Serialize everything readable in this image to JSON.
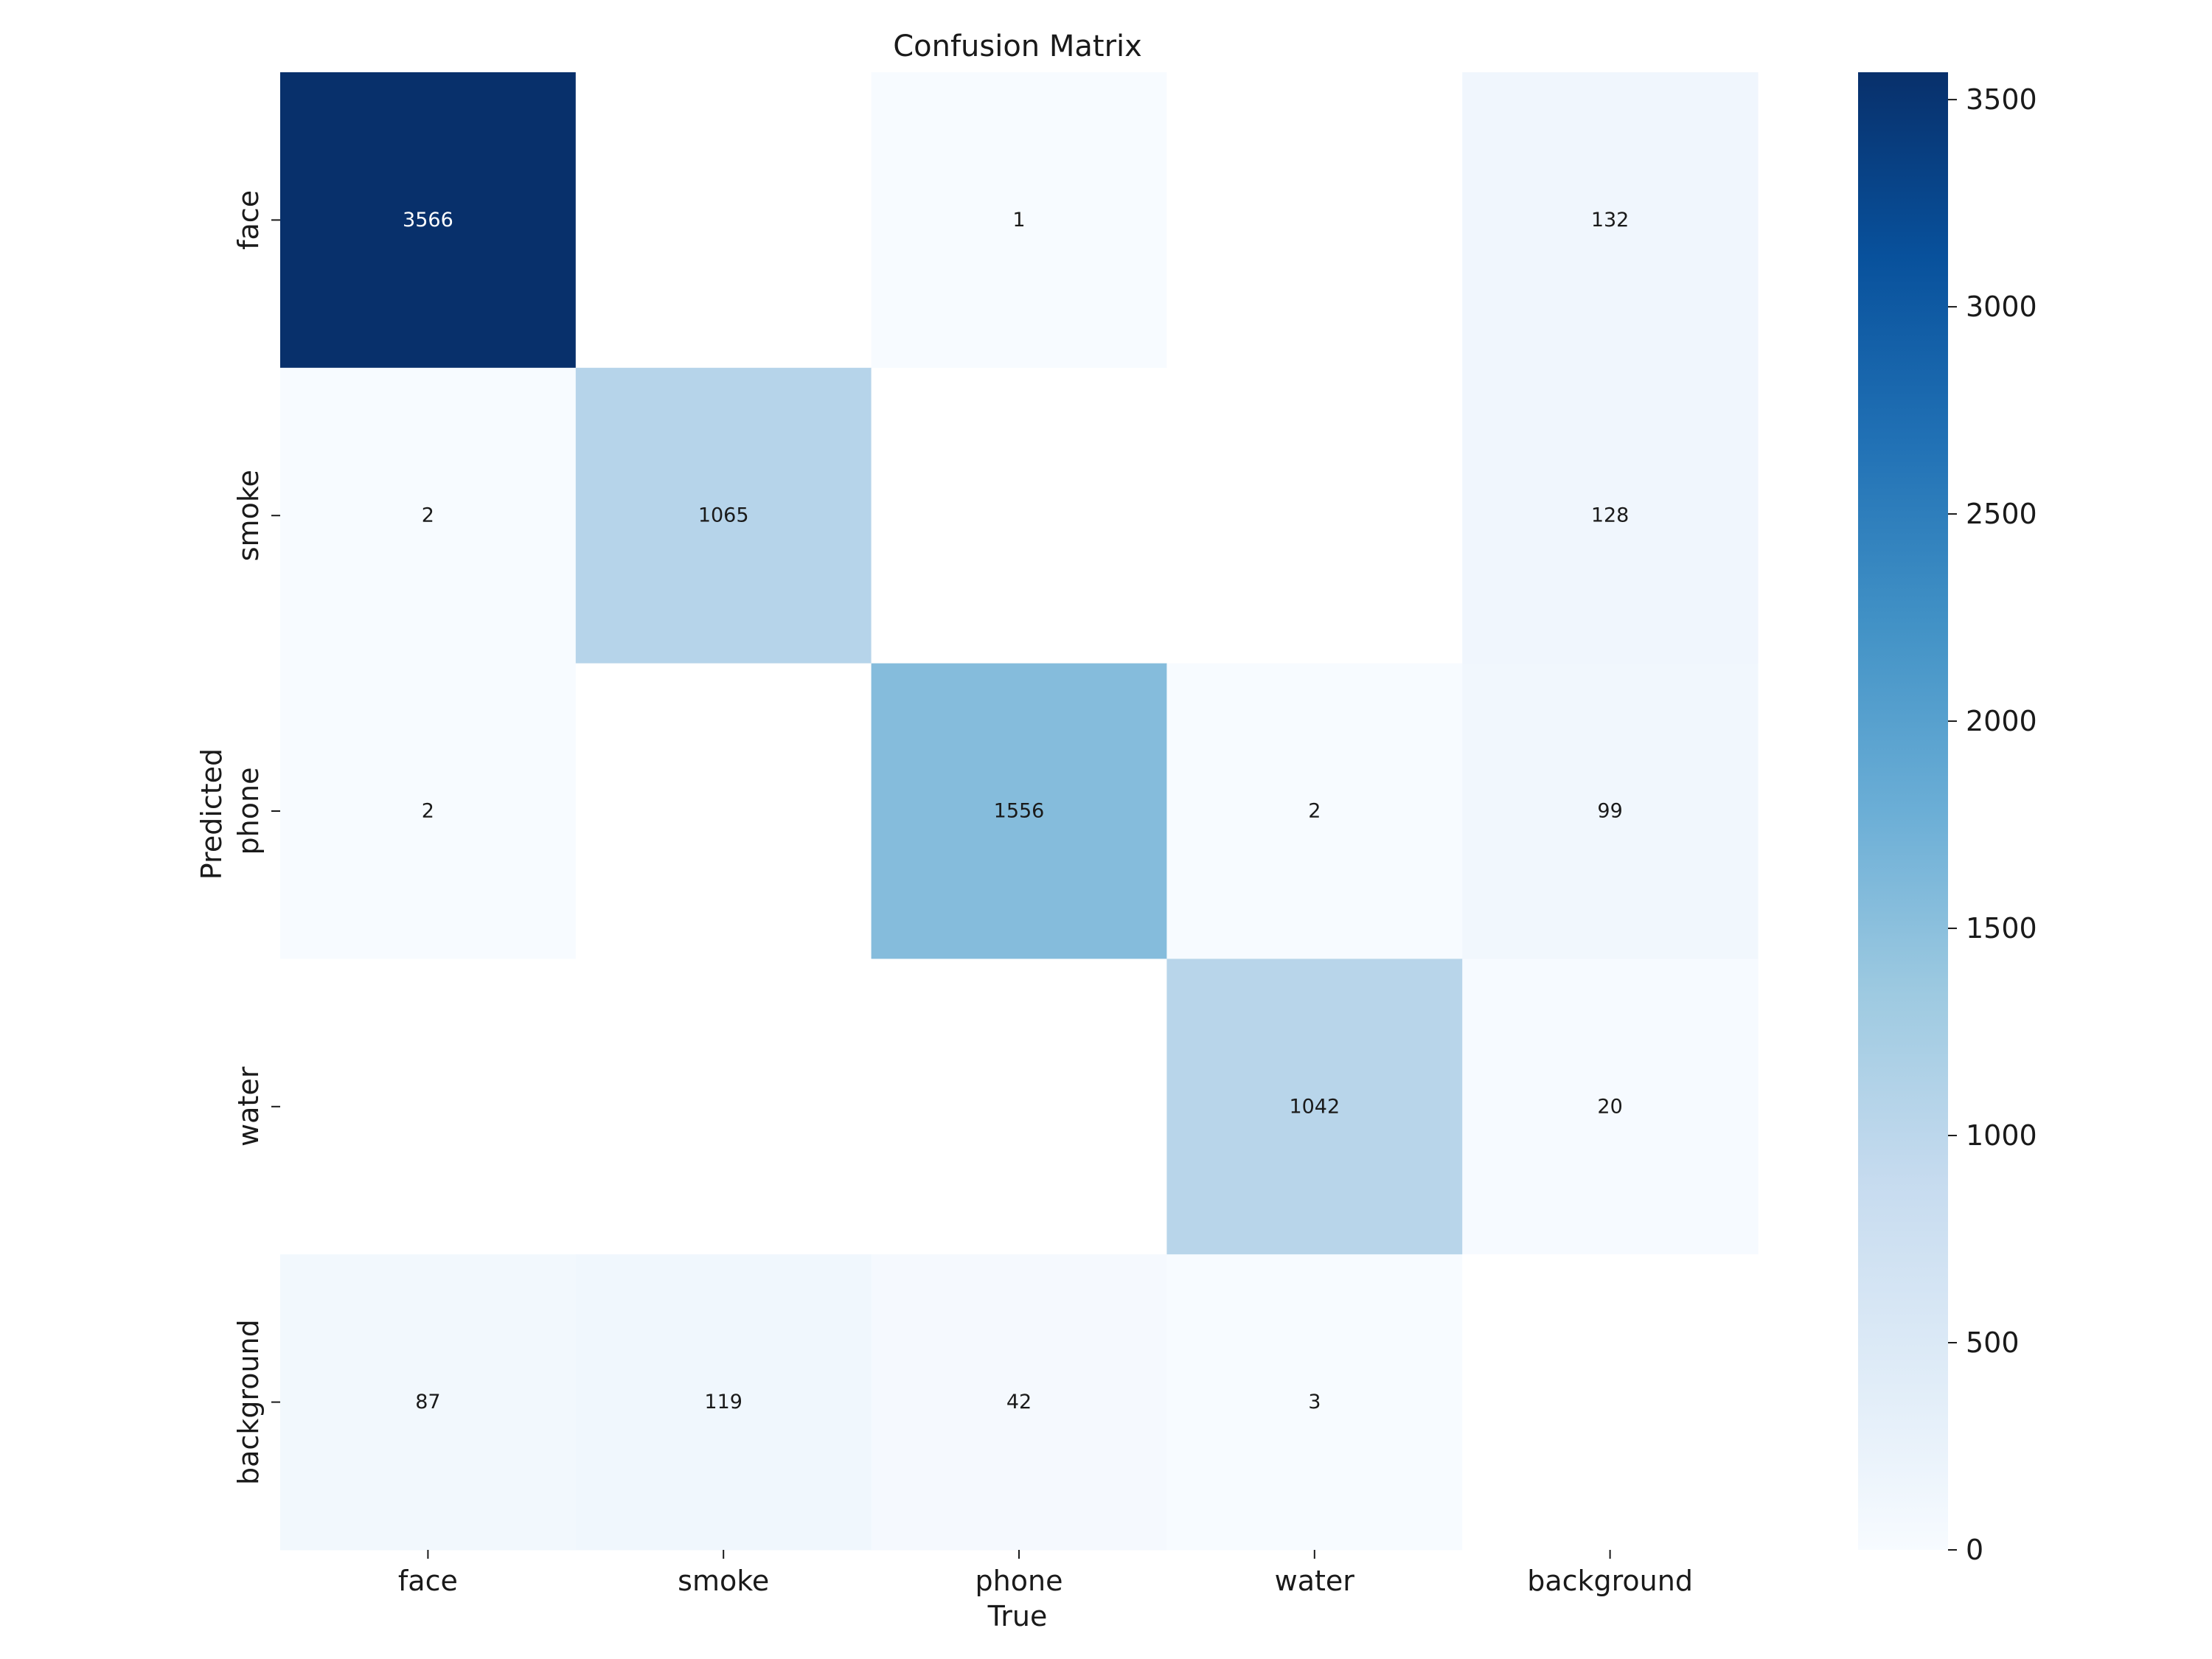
{
  "chart_data": {
    "type": "heatmap",
    "title": "Confusion Matrix",
    "xlabel": "True",
    "ylabel": "Predicted",
    "x_categories": [
      "face",
      "smoke",
      "phone",
      "water",
      "background"
    ],
    "y_categories": [
      "face",
      "smoke",
      "phone",
      "water",
      "background"
    ],
    "values": [
      [
        3566,
        null,
        1,
        null,
        132
      ],
      [
        2,
        1065,
        null,
        null,
        128
      ],
      [
        2,
        null,
        1556,
        2,
        99
      ],
      [
        null,
        null,
        null,
        1042,
        20
      ],
      [
        87,
        119,
        42,
        3,
        null
      ]
    ],
    "colormap": "Blues",
    "colorbar": {
      "range": [
        0,
        3566
      ],
      "ticks": [
        0,
        500,
        1000,
        1500,
        2000,
        2500,
        3000,
        3500
      ],
      "tick_labels": [
        "0",
        "500",
        "1000",
        "1500",
        "2000",
        "2500",
        "3000",
        "3500"
      ]
    },
    "empty_cell_color": "#ffffff"
  }
}
